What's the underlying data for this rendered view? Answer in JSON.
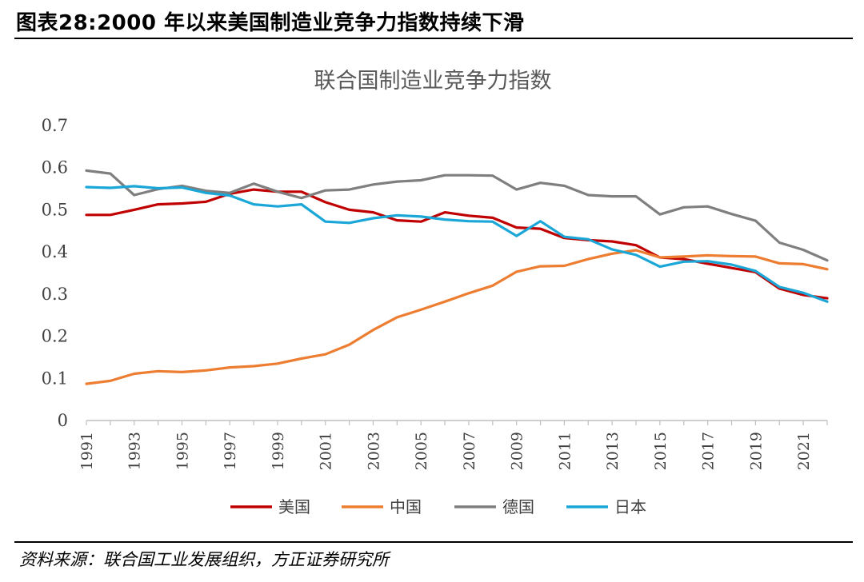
{
  "figure": {
    "title": "图表28:2000 年以来美国制造业竞争力指数持续下滑",
    "source": "资料来源：联合国工业发展组织，方正证券研究所"
  },
  "chart_data": {
    "type": "line",
    "title": "联合国制造业竞争力指数",
    "xlabel": "",
    "ylabel": "",
    "ylim": [
      0,
      0.7
    ],
    "yticks": [
      "0",
      "0.1",
      "0.2",
      "0.3",
      "0.4",
      "0.5",
      "0.6",
      "0.7"
    ],
    "xlim": [
      1991,
      2022
    ],
    "xtick_labels": [
      "1991",
      "1993",
      "1995",
      "1997",
      "1999",
      "2001",
      "2003",
      "2005",
      "2007",
      "2009",
      "2011",
      "2013",
      "2015",
      "2017",
      "2019",
      "2021"
    ],
    "x": [
      1991,
      1992,
      1993,
      1994,
      1995,
      1996,
      1997,
      1998,
      1999,
      2000,
      2001,
      2002,
      2003,
      2004,
      2005,
      2006,
      2007,
      2008,
      2009,
      2010,
      2011,
      2012,
      2013,
      2014,
      2015,
      2016,
      2017,
      2018,
      2019,
      2020,
      2021,
      2022
    ],
    "grid": false,
    "legend_position": "bottom",
    "series": [
      {
        "name": "美国",
        "color": "#c00000",
        "values": [
          0.488,
          0.488,
          0.5,
          0.513,
          0.515,
          0.519,
          0.538,
          0.548,
          0.543,
          0.543,
          0.518,
          0.5,
          0.494,
          0.475,
          0.472,
          0.494,
          0.486,
          0.481,
          0.458,
          0.455,
          0.433,
          0.428,
          0.425,
          0.416,
          0.387,
          0.383,
          0.372,
          0.362,
          0.352,
          0.313,
          0.298,
          0.29
        ]
      },
      {
        "name": "中国",
        "color": "#ed7d31",
        "values": [
          0.087,
          0.094,
          0.111,
          0.117,
          0.115,
          0.119,
          0.126,
          0.129,
          0.135,
          0.147,
          0.157,
          0.18,
          0.215,
          0.245,
          0.263,
          0.282,
          0.302,
          0.32,
          0.353,
          0.366,
          0.367,
          0.383,
          0.396,
          0.404,
          0.387,
          0.389,
          0.392,
          0.39,
          0.389,
          0.373,
          0.371,
          0.359
        ]
      },
      {
        "name": "德国",
        "color": "#7f7f7f",
        "values": [
          0.593,
          0.586,
          0.535,
          0.549,
          0.557,
          0.545,
          0.54,
          0.562,
          0.543,
          0.528,
          0.546,
          0.548,
          0.56,
          0.567,
          0.57,
          0.582,
          0.582,
          0.581,
          0.548,
          0.564,
          0.557,
          0.535,
          0.532,
          0.532,
          0.489,
          0.506,
          0.508,
          0.49,
          0.474,
          0.422,
          0.405,
          0.38
        ]
      },
      {
        "name": "日本",
        "color": "#1aa7d8",
        "values": [
          0.554,
          0.552,
          0.556,
          0.551,
          0.553,
          0.54,
          0.534,
          0.513,
          0.508,
          0.513,
          0.472,
          0.469,
          0.48,
          0.487,
          0.484,
          0.477,
          0.473,
          0.472,
          0.438,
          0.473,
          0.436,
          0.43,
          0.406,
          0.393,
          0.365,
          0.377,
          0.378,
          0.37,
          0.355,
          0.317,
          0.303,
          0.282
        ]
      }
    ]
  }
}
